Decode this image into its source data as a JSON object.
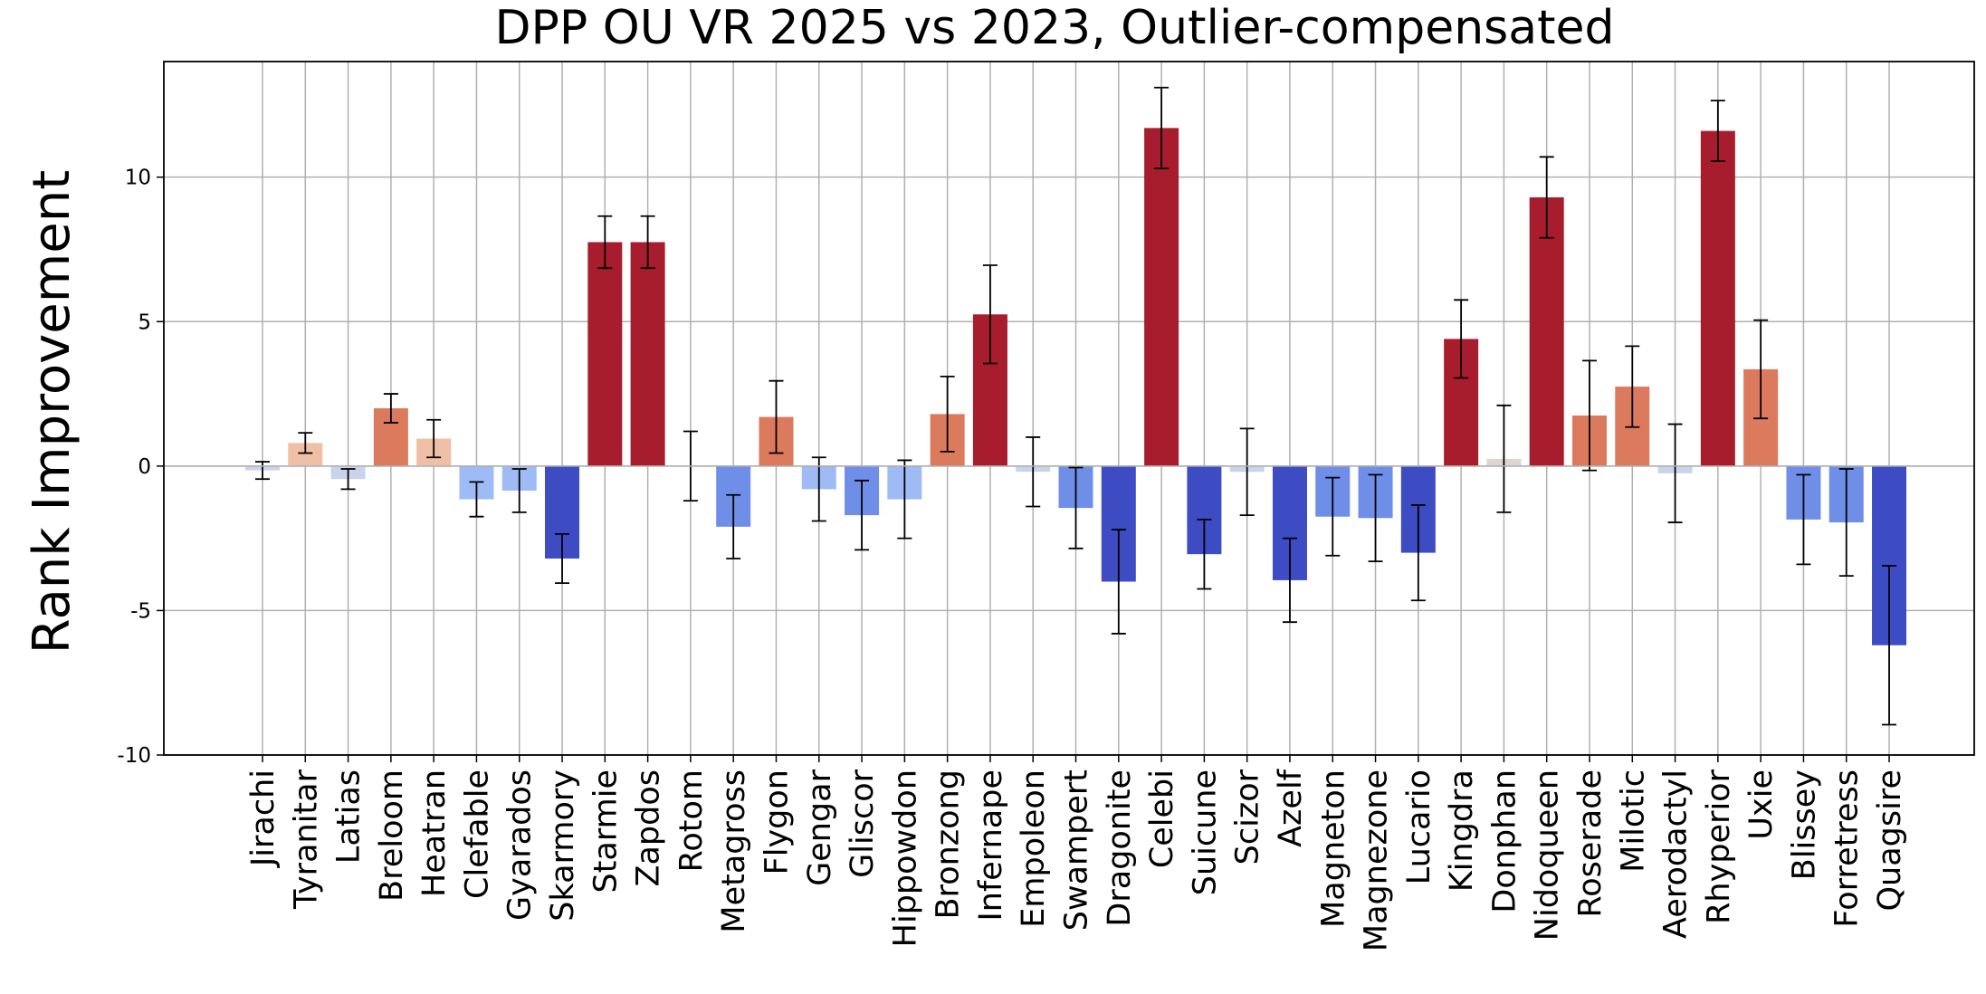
{
  "chart_data": {
    "type": "bar",
    "title": "DPP OU VR 2025 vs 2023, Outlier-compensated",
    "xlabel": "",
    "ylabel": "Rank Improvement",
    "ylim": [
      -10,
      14
    ],
    "yticks": [
      -10,
      -5,
      0,
      5,
      10
    ],
    "grid": true,
    "legend": "none",
    "colormap": "coolwarm",
    "categories": [
      "Jirachi",
      "Tyranitar",
      "Latias",
      "Breloom",
      "Heatran",
      "Clefable",
      "Gyarados",
      "Skarmory",
      "Starmie",
      "Zapdos",
      "Rotom",
      "Metagross",
      "Flygon",
      "Gengar",
      "Gliscor",
      "Hippowdon",
      "Bronzong",
      "Infernape",
      "Empoleon",
      "Swampert",
      "Dragonite",
      "Celebi",
      "Suicune",
      "Scizor",
      "Azelf",
      "Magneton",
      "Magnezone",
      "Lucario",
      "Kingdra",
      "Donphan",
      "Nidoqueen",
      "Roserade",
      "Milotic",
      "Aerodactyl",
      "Rhyperior",
      "Uxie",
      "Blissey",
      "Forretress",
      "Quagsire"
    ],
    "values": [
      -0.15,
      0.8,
      -0.45,
      2.0,
      0.95,
      -1.15,
      -0.85,
      -3.2,
      7.75,
      7.75,
      0.0,
      -2.1,
      1.7,
      -0.8,
      -1.7,
      -1.15,
      1.8,
      5.25,
      -0.2,
      -1.45,
      -4.0,
      11.7,
      -3.05,
      -0.2,
      -3.95,
      -1.75,
      -1.8,
      -3.0,
      4.4,
      0.25,
      9.3,
      1.75,
      2.75,
      -0.25,
      11.6,
      3.35,
      -1.85,
      -1.95,
      -6.2
    ],
    "errors": [
      0.3,
      0.35,
      0.35,
      0.5,
      0.65,
      0.6,
      0.75,
      0.85,
      0.9,
      0.9,
      1.2,
      1.1,
      1.25,
      1.1,
      1.2,
      1.35,
      1.3,
      1.7,
      1.2,
      1.4,
      1.8,
      1.4,
      1.2,
      1.5,
      1.45,
      1.35,
      1.5,
      1.65,
      1.35,
      1.85,
      1.4,
      1.9,
      1.4,
      1.7,
      1.05,
      1.7,
      1.55,
      1.85,
      2.75
    ],
    "colors": {
      "strong_positive": "#a81d2d",
      "positive": "#dc7a5e",
      "weak_positive": "#efbfa6",
      "neutral_positive": "#dcd5d2",
      "neutral_negative": "#c9d4ec",
      "weak_negative": "#9ebbf6",
      "negative": "#6f8ee8",
      "strong_negative": "#3d4cc3"
    }
  }
}
